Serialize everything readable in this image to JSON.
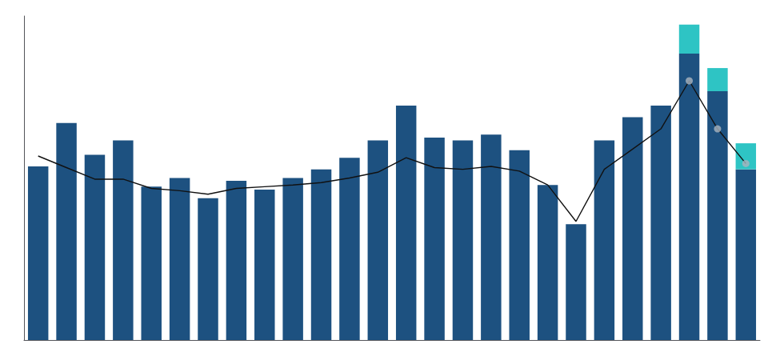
{
  "chart_data": {
    "type": "bar",
    "stacked": true,
    "grid": false,
    "tick_labels": false,
    "categories": [
      null,
      null,
      null,
      null,
      null,
      null,
      null,
      null,
      null,
      null,
      null,
      null,
      null,
      null,
      null,
      null,
      null,
      null,
      null,
      null,
      null,
      null,
      null,
      null,
      null,
      null
    ],
    "ylim": [
      0,
      560
    ],
    "series": [
      {
        "type": "bar",
        "color": "#1d5180",
        "values": [
          300,
          375,
          320,
          345,
          265,
          280,
          245,
          275,
          260,
          280,
          295,
          315,
          345,
          405,
          350,
          345,
          355,
          328,
          268,
          200,
          345,
          385,
          405,
          495,
          430,
          295
        ]
      },
      {
        "type": "bar",
        "color": "#2ec4c4",
        "values": [
          0,
          0,
          0,
          0,
          0,
          0,
          0,
          0,
          0,
          0,
          0,
          0,
          0,
          0,
          0,
          0,
          0,
          0,
          0,
          0,
          0,
          0,
          0,
          50,
          40,
          45
        ]
      },
      {
        "type": "line",
        "color": "#111111",
        "values": [
          318,
          298,
          278,
          278,
          262,
          258,
          252,
          262,
          265,
          268,
          272,
          280,
          290,
          315,
          298,
          295,
          300,
          292,
          268,
          205,
          295,
          330,
          365,
          448,
          365,
          305
        ]
      },
      {
        "type": "scatter",
        "color": "#aab4be",
        "marker": "circle",
        "values": [
          null,
          null,
          null,
          null,
          null,
          null,
          null,
          null,
          null,
          null,
          null,
          null,
          null,
          null,
          null,
          null,
          null,
          null,
          null,
          null,
          null,
          null,
          null,
          448,
          365,
          305
        ]
      }
    ]
  }
}
